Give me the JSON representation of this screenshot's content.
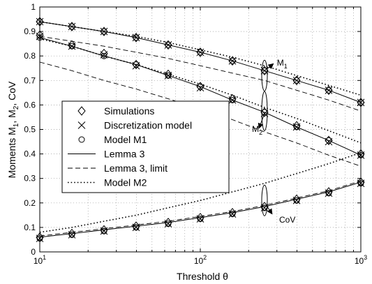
{
  "chart_data": {
    "type": "line",
    "xlabel": "Threshold θ",
    "ylabel": "Moments M",
    "ylabel_parts": [
      "Moments M",
      "1",
      ", M",
      "2",
      ", CoV"
    ],
    "xscale": "log",
    "xlim": [
      10,
      1000
    ],
    "ylim": [
      0,
      1
    ],
    "grid": true,
    "x_ticks": [
      {
        "base": "10",
        "exp": "1"
      },
      {
        "base": "10",
        "exp": "2"
      },
      {
        "base": "10",
        "exp": "3"
      }
    ],
    "y_ticks": [
      "0",
      "0.1",
      "0.2",
      "0.3",
      "0.4",
      "0.5",
      "0.6",
      "0.7",
      "0.8",
      "0.9",
      "1"
    ],
    "legend": {
      "placement": "center-left",
      "entries": [
        {
          "label": "Simulations",
          "marker": "diamond",
          "line": "none"
        },
        {
          "label": "Discretization model",
          "marker": "x",
          "line": "none"
        },
        {
          "label": "Model M1",
          "marker": "circle",
          "line": "none"
        },
        {
          "label": "Lemma 3",
          "marker": "none",
          "line": "solid"
        },
        {
          "label": "Lemma 3, limit",
          "marker": "none",
          "line": "dashed"
        },
        {
          "label": "Model M2",
          "marker": "none",
          "line": "dotted"
        }
      ]
    },
    "annotations": [
      {
        "text": "M",
        "sub": "1",
        "x": 300,
        "y": 0.76
      },
      {
        "text": "M",
        "sub": "2",
        "x": 210,
        "y": 0.49
      },
      {
        "text": "CoV",
        "x": 310,
        "y": 0.12
      }
    ],
    "marker_x": [
      10,
      15.85,
      25.12,
      39.81,
      63.1,
      100,
      158.5,
      251.2,
      398.1,
      631,
      1000
    ],
    "series": [
      {
        "name": "Simulations",
        "group": "M1",
        "style": "diamond",
        "values": [
          0.94,
          0.92,
          0.9,
          0.875,
          0.845,
          0.815,
          0.78,
          0.74,
          0.7,
          0.66,
          0.61
        ]
      },
      {
        "name": "Discretization model",
        "group": "M1",
        "style": "x",
        "values": [
          0.94,
          0.92,
          0.9,
          0.875,
          0.845,
          0.815,
          0.78,
          0.74,
          0.7,
          0.66,
          0.61
        ]
      },
      {
        "name": "Model M1",
        "group": "M1",
        "style": "circle",
        "values": [
          0.94,
          0.92,
          0.9,
          0.875,
          0.845,
          0.815,
          0.78,
          0.74,
          0.7,
          0.66,
          0.61
        ]
      },
      {
        "name": "Lemma 3",
        "group": "M1",
        "style": "solid",
        "values": [
          0.94,
          0.92,
          0.9,
          0.875,
          0.845,
          0.815,
          0.78,
          0.74,
          0.7,
          0.66,
          0.61
        ]
      },
      {
        "name": "Lemma 3, limit",
        "group": "M1",
        "style": "dashed",
        "values": [
          0.88,
          0.86,
          0.84,
          0.815,
          0.79,
          0.76,
          0.73,
          0.7,
          0.66,
          0.62,
          0.575
        ]
      },
      {
        "name": "Model M2",
        "group": "M1",
        "style": "dotted",
        "values": [
          0.94,
          0.92,
          0.9,
          0.88,
          0.855,
          0.825,
          0.795,
          0.76,
          0.72,
          0.68,
          0.64
        ]
      },
      {
        "name": "Simulations",
        "group": "M2",
        "style": "diamond",
        "values": [
          0.885,
          0.845,
          0.81,
          0.765,
          0.725,
          0.675,
          0.625,
          0.57,
          0.515,
          0.455,
          0.4
        ]
      },
      {
        "name": "Discretization model",
        "group": "M2",
        "style": "x",
        "values": [
          0.88,
          0.84,
          0.805,
          0.76,
          0.72,
          0.67,
          0.62,
          0.565,
          0.51,
          0.45,
          0.395
        ]
      },
      {
        "name": "Model M1",
        "group": "M2",
        "style": "circle",
        "values": [
          0.875,
          0.84,
          0.8,
          0.765,
          0.72,
          0.675,
          0.62,
          0.57,
          0.51,
          0.455,
          0.395
        ]
      },
      {
        "name": "Lemma 3",
        "group": "M2",
        "style": "solid",
        "values": [
          0.875,
          0.84,
          0.8,
          0.765,
          0.72,
          0.675,
          0.62,
          0.57,
          0.51,
          0.455,
          0.395
        ]
      },
      {
        "name": "Lemma 3, limit",
        "group": "M2",
        "style": "dashed",
        "values": [
          0.775,
          0.74,
          0.7,
          0.665,
          0.625,
          0.585,
          0.54,
          0.49,
          0.445,
          0.395,
          0.35
        ]
      },
      {
        "name": "Model M2",
        "group": "M2",
        "style": "dotted",
        "values": [
          0.87,
          0.84,
          0.8,
          0.765,
          0.725,
          0.685,
          0.64,
          0.59,
          0.545,
          0.495,
          0.445
        ]
      },
      {
        "name": "Simulations",
        "group": "CoV",
        "style": "diamond",
        "values": [
          0.06,
          0.075,
          0.09,
          0.105,
          0.12,
          0.14,
          0.16,
          0.185,
          0.215,
          0.245,
          0.285
        ]
      },
      {
        "name": "Discretization model",
        "group": "CoV",
        "style": "x",
        "values": [
          0.055,
          0.07,
          0.085,
          0.1,
          0.115,
          0.135,
          0.155,
          0.18,
          0.21,
          0.24,
          0.28
        ]
      },
      {
        "name": "Model M1",
        "group": "CoV",
        "style": "circle",
        "values": [
          0.055,
          0.07,
          0.085,
          0.1,
          0.115,
          0.135,
          0.155,
          0.18,
          0.21,
          0.24,
          0.28
        ]
      },
      {
        "name": "Lemma 3",
        "group": "CoV",
        "style": "solid",
        "values": [
          0.06,
          0.075,
          0.09,
          0.105,
          0.12,
          0.14,
          0.16,
          0.185,
          0.215,
          0.245,
          0.285
        ]
      },
      {
        "name": "Lemma 3, limit",
        "group": "CoV",
        "style": "dashed",
        "values": [
          0.065,
          0.08,
          0.095,
          0.11,
          0.125,
          0.145,
          0.165,
          0.19,
          0.22,
          0.25,
          0.29
        ]
      },
      {
        "name": "Model M2",
        "group": "CoV",
        "style": "dotted",
        "values": [
          0.08,
          0.1,
          0.125,
          0.15,
          0.18,
          0.21,
          0.245,
          0.28,
          0.32,
          0.36,
          0.405
        ]
      }
    ]
  }
}
